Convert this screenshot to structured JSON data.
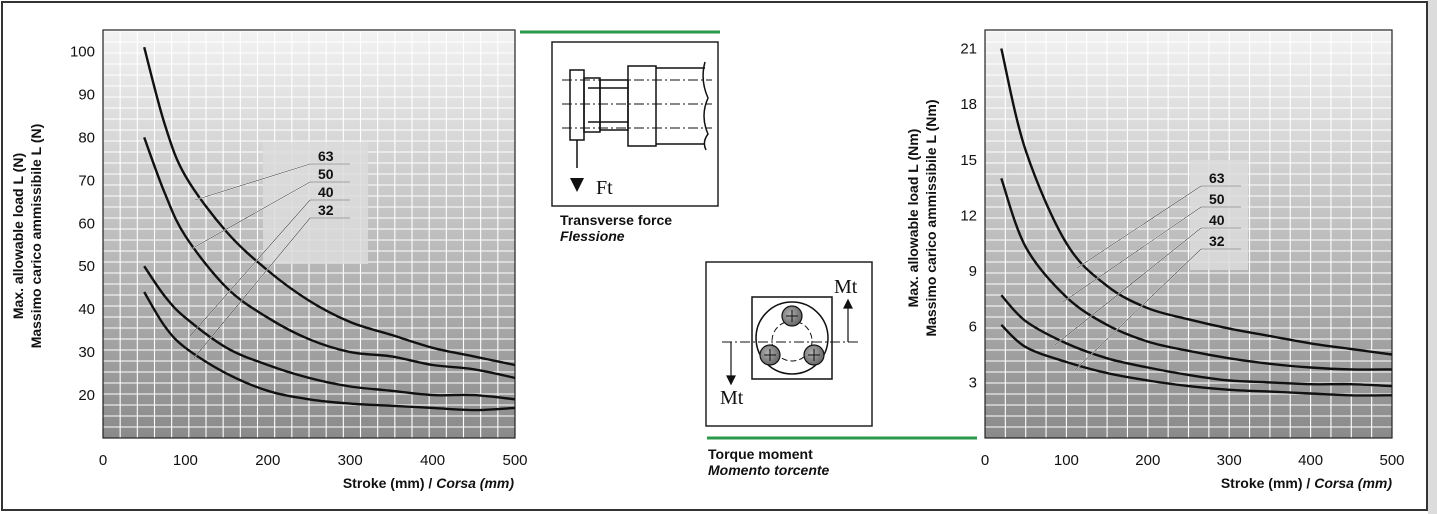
{
  "colors": {
    "accent": "#2a9a4a",
    "frame": "#333333",
    "curve": "#111111"
  },
  "left_diagram": {
    "caption_en": "Transverse force",
    "caption_it": "Flessione",
    "symbol": "Ft"
  },
  "right_diagram": {
    "caption_en": "Torque moment",
    "caption_it": "Momento torcente",
    "symbol_top": "Mt",
    "symbol_bottom": "Mt"
  },
  "chart_data": [
    {
      "type": "line",
      "ylabel_1": "Max. allowable load L (N)",
      "ylabel_2": "Massimo carico ammissibile L (N)",
      "xlabel_a": "Stroke (mm) / ",
      "xlabel_b": "Corsa (mm)",
      "xlim": [
        0,
        500
      ],
      "ylim": [
        10,
        105
      ],
      "xticks": [
        0,
        100,
        200,
        300,
        400,
        500
      ],
      "yticks": [
        20,
        30,
        40,
        50,
        60,
        70,
        80,
        90,
        100
      ],
      "grid": true,
      "series": [
        {
          "name": "63",
          "x": [
            50,
            75,
            100,
            150,
            200,
            250,
            300,
            350,
            400,
            450,
            500
          ],
          "y": [
            101,
            83,
            71,
            58,
            49,
            42,
            37,
            34,
            31,
            29,
            27
          ]
        },
        {
          "name": "50",
          "x": [
            50,
            75,
            100,
            150,
            200,
            250,
            300,
            350,
            400,
            450,
            500
          ],
          "y": [
            80,
            67,
            57,
            45,
            38,
            33,
            30,
            29,
            27,
            26,
            24
          ]
        },
        {
          "name": "40",
          "x": [
            50,
            75,
            100,
            150,
            200,
            250,
            300,
            350,
            400,
            450,
            500
          ],
          "y": [
            50,
            43,
            38,
            31,
            27,
            24,
            22,
            21,
            20,
            20,
            19
          ]
        },
        {
          "name": "32",
          "x": [
            50,
            75,
            100,
            150,
            200,
            250,
            300,
            350,
            400,
            450,
            500
          ],
          "y": [
            44,
            36,
            31,
            25,
            21,
            19,
            18,
            17.5,
            17,
            16.5,
            17
          ]
        }
      ]
    },
    {
      "type": "line",
      "ylabel_1": "Max. allowable load L (Nm)",
      "ylabel_2": "Massimo carico ammissibile L (Nm)",
      "xlabel_a": "Stroke (mm) / ",
      "xlabel_b": "Corsa (mm)",
      "xlim": [
        0,
        500
      ],
      "ylim": [
        0,
        22
      ],
      "xticks": [
        0,
        100,
        200,
        300,
        400,
        500
      ],
      "yticks": [
        3,
        6,
        9,
        12,
        15,
        18,
        21
      ],
      "grid": true,
      "series": [
        {
          "name": "63",
          "x": [
            20,
            50,
            100,
            150,
            200,
            250,
            300,
            350,
            400,
            450,
            500
          ],
          "y": [
            21,
            15.5,
            10.5,
            8.2,
            7,
            6.4,
            5.9,
            5.5,
            5.1,
            4.8,
            4.5
          ]
        },
        {
          "name": "50",
          "x": [
            20,
            50,
            100,
            150,
            200,
            250,
            300,
            350,
            400,
            450,
            500
          ],
          "y": [
            14,
            10.3,
            7.6,
            6.1,
            5.2,
            4.7,
            4.3,
            4.0,
            3.8,
            3.7,
            3.7
          ]
        },
        {
          "name": "40",
          "x": [
            20,
            50,
            100,
            150,
            200,
            250,
            300,
            350,
            400,
            450,
            500
          ],
          "y": [
            7.7,
            6.3,
            5.1,
            4.3,
            3.8,
            3.4,
            3.1,
            3.0,
            2.9,
            2.9,
            2.8
          ]
        },
        {
          "name": "32",
          "x": [
            20,
            50,
            100,
            150,
            200,
            250,
            300,
            350,
            400,
            450,
            500
          ],
          "y": [
            6.1,
            4.9,
            4.1,
            3.5,
            3.1,
            2.8,
            2.6,
            2.5,
            2.4,
            2.3,
            2.3
          ]
        }
      ]
    }
  ]
}
